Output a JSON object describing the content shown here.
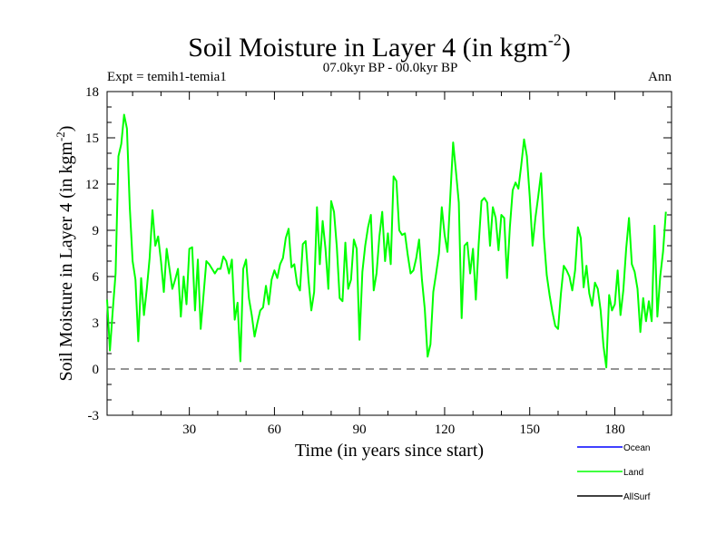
{
  "chart_data": {
    "type": "line",
    "title": "Soil Moisture in Layer 4 (in kgm",
    "title_sup": "-2",
    "title_close": ")",
    "subtitle": "07.0kyr BP - 00.0kyr BP",
    "expt_label": "Expt = temih1-temia1",
    "season_label": "Ann",
    "xlabel": "Time (in years since start)",
    "ylabel": "Soil Moisture in Layer 4 (in kgm",
    "ylabel_sup": "-2",
    "ylabel_close": ")",
    "xlim": [
      1,
      200
    ],
    "ylim": [
      -3,
      18
    ],
    "xticks": [
      30,
      60,
      90,
      120,
      150,
      180
    ],
    "yticks": [
      -3,
      0,
      3,
      6,
      9,
      12,
      15,
      18
    ],
    "reference_line": 0,
    "legend": [
      {
        "name": "Ocean",
        "color": "#0000ff"
      },
      {
        "name": "Land",
        "color": "#00ff00"
      },
      {
        "name": "AllSurf",
        "color": "#000000"
      }
    ],
    "series": [
      {
        "name": "Land",
        "color": "#00ff00",
        "x_start": 1,
        "values": [
          4.5,
          1.2,
          3.8,
          6.2,
          13.8,
          14.6,
          16.5,
          15.6,
          10.5,
          7.0,
          5.8,
          1.8,
          5.9,
          3.5,
          5.2,
          7.2,
          10.3,
          8.0,
          8.6,
          7.0,
          5.0,
          7.8,
          6.5,
          5.2,
          5.8,
          6.5,
          3.4,
          6.0,
          4.2,
          7.8,
          7.9,
          3.8,
          7.1,
          2.6,
          4.8,
          7.0,
          6.8,
          6.5,
          6.2,
          6.5,
          6.5,
          7.3,
          7.0,
          6.2,
          7.1,
          3.2,
          4.3,
          0.5,
          6.5,
          7.1,
          4.6,
          3.5,
          2.1,
          3.0,
          3.8,
          4.0,
          5.4,
          4.2,
          5.8,
          6.4,
          5.9,
          6.8,
          7.2,
          8.5,
          9.1,
          6.6,
          6.8,
          5.5,
          5.1,
          8.1,
          8.3,
          5.8,
          3.8,
          5.0,
          10.5,
          6.8,
          9.6,
          7.8,
          5.2,
          10.9,
          10.2,
          7.9,
          4.6,
          4.4,
          8.2,
          5.2,
          5.8,
          8.4,
          7.8,
          1.9,
          6.3,
          8.0,
          9.2,
          10.0,
          5.1,
          6.2,
          8.6,
          10.2,
          7.0,
          8.8,
          6.8,
          12.5,
          12.2,
          9.0,
          8.7,
          8.8,
          7.4,
          6.2,
          6.4,
          7.2,
          8.4,
          5.8,
          3.9,
          0.8,
          1.6,
          5.0,
          6.2,
          7.5,
          10.5,
          8.7,
          7.6,
          11.2,
          14.7,
          12.8,
          10.8,
          3.3,
          8.0,
          8.2,
          6.2,
          7.8,
          4.5,
          8.1,
          10.9,
          11.1,
          10.8,
          8.0,
          10.5,
          9.8,
          7.7,
          10.0,
          9.8,
          5.9,
          9.2,
          11.6,
          12.1,
          11.7,
          13.2,
          14.9,
          13.8,
          11.2,
          8.0,
          9.8,
          11.2,
          12.7,
          8.5,
          6.1,
          4.8,
          3.7,
          2.8,
          2.6,
          4.9,
          6.7,
          6.4,
          6.0,
          5.1,
          6.4,
          9.2,
          8.5,
          5.3,
          6.7,
          4.9,
          4.1,
          5.6,
          5.2,
          3.8,
          1.5,
          0.1,
          4.8,
          3.8,
          4.2,
          6.4,
          3.5,
          5.1,
          7.8,
          9.8,
          6.8,
          6.3,
          5.2,
          2.4,
          4.6,
          3.1,
          4.4,
          3.1,
          9.3,
          3.4,
          6.0,
          7.6,
          10.2
        ]
      }
    ]
  }
}
